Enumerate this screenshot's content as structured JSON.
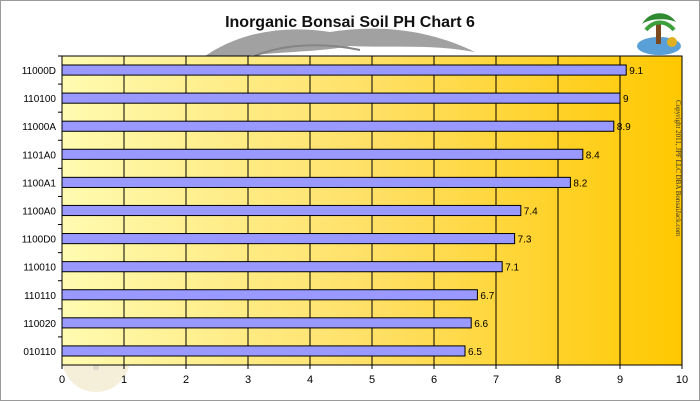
{
  "chart_data": {
    "type": "bar",
    "orientation": "horizontal",
    "title": "Inorganic Bonsai Soil PH Chart 6",
    "categories": [
      "11000D",
      "110100",
      "11000A",
      "1101A0",
      "1100A1",
      "1100A0",
      "1100D0",
      "110010",
      "110110",
      "110020",
      "010110"
    ],
    "values": [
      9.1,
      9,
      8.9,
      8.4,
      8.2,
      7.4,
      7.3,
      7.1,
      6.7,
      6.6,
      6.5
    ],
    "value_labels": [
      "9.1",
      "9",
      "8.9",
      "8.4",
      "8.2",
      "7.4",
      "7.3",
      "7.1",
      "6.7",
      "6.6",
      "6.5"
    ],
    "xlim": [
      0,
      10
    ],
    "x_ticks": [
      "0",
      "1",
      "2",
      "3",
      "4",
      "5",
      "6",
      "7",
      "8",
      "9",
      "10"
    ],
    "xlabel": "",
    "ylabel": "",
    "grid": true,
    "bar_color": "#9999ff",
    "plot_gradient": [
      "#fffbb0",
      "#ffe066",
      "#ffc800"
    ],
    "copyright": "Copyright 2011, JPF LLC DBA BonsaiJack.com"
  }
}
